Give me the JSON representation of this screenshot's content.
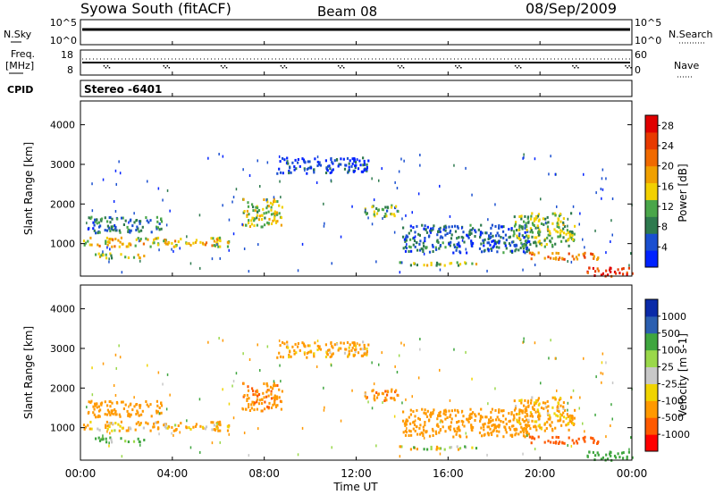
{
  "header": {
    "station": "Syowa South (fitACF)",
    "beam": "Beam 08",
    "date": "08/Sep/2009"
  },
  "noise_panel": {
    "left_label": "N.Sky",
    "right_label": "N.Search",
    "left_ticks": [
      "10^5",
      "10^0"
    ],
    "right_ticks": [
      "10^5",
      "10^0"
    ]
  },
  "freq_panel": {
    "left_label_1": "Freq.",
    "left_label_2": "[MHz]",
    "right_label": "Nave",
    "left_ticks": [
      "18",
      "8"
    ],
    "right_ticks": [
      "60",
      "0"
    ]
  },
  "cpid": {
    "label": "CPID",
    "value": "Stereo -6401"
  },
  "colors": {
    "power": [
      "#0022ff",
      "#1a4fd0",
      "#2e7a4e",
      "#4aa64a",
      "#f2d000",
      "#f0a000",
      "#f06a00",
      "#e83a00",
      "#e00000"
    ],
    "velocity": [
      "#ff0000",
      "#ff5a00",
      "#ff9900",
      "#f0d400",
      "#c8c8c8",
      "#9ad84a",
      "#3fa63f",
      "#2b5fb0",
      "#0a2aa8"
    ]
  },
  "chart_data": [
    {
      "type": "heatmap",
      "name": "power-panel",
      "xlabel": "Time UT",
      "ylabel": "Slant Range [km]",
      "x_ticks": [
        "00:00",
        "04:00",
        "08:00",
        "12:00",
        "16:00",
        "20:00",
        "00:00"
      ],
      "xlim_hours": [
        0,
        24
      ],
      "y_ticks": [
        1000,
        2000,
        3000,
        4000
      ],
      "ylim": [
        180,
        4600
      ],
      "colorbar": {
        "label": "Power [dB]",
        "ticks": [
          "4",
          "8",
          "12",
          "16",
          "20",
          "24",
          "28"
        ],
        "range": [
          0,
          30
        ]
      },
      "regions": [
        {
          "t": [
            0.1,
            6.5
          ],
          "r": [
            950,
            1180
          ],
          "v": 16
        },
        {
          "t": [
            0.6,
            2.8
          ],
          "r": [
            650,
            780
          ],
          "v": 14
        },
        {
          "t": [
            0.3,
            3.5
          ],
          "r": [
            1300,
            1700
          ],
          "v": 8
        },
        {
          "t": [
            7.0,
            8.8
          ],
          "r": [
            1450,
            2150
          ],
          "v": 14
        },
        {
          "t": [
            12.3,
            13.8
          ],
          "r": [
            1700,
            2000
          ],
          "v": 10
        },
        {
          "t": [
            13.2,
            17.5
          ],
          "r": [
            480,
            560
          ],
          "v": 12
        },
        {
          "t": [
            14.0,
            19.5
          ],
          "r": [
            800,
            1500
          ],
          "v": 6
        },
        {
          "t": [
            18.8,
            21.5
          ],
          "r": [
            950,
            1800
          ],
          "v": 12
        },
        {
          "t": [
            19.5,
            22.5
          ],
          "r": [
            620,
            800
          ],
          "v": 22
        },
        {
          "t": [
            22.0,
            24.0
          ],
          "r": [
            200,
            420
          ],
          "v": 26
        },
        {
          "t": [
            8.5,
            12.5
          ],
          "r": [
            2800,
            3200
          ],
          "v": 4
        }
      ]
    },
    {
      "type": "heatmap",
      "name": "velocity-panel",
      "xlabel": "Time UT",
      "ylabel": "Slant Range [km]",
      "x_ticks": [
        "00:00",
        "04:00",
        "08:00",
        "12:00",
        "16:00",
        "20:00",
        "00:00"
      ],
      "xlim_hours": [
        0,
        24
      ],
      "y_ticks": [
        1000,
        2000,
        3000,
        4000
      ],
      "ylim": [
        180,
        4600
      ],
      "colorbar": {
        "label": "Velocity [m s-1]",
        "ticks": [
          "1000",
          "500",
          "100",
          "25",
          "-25",
          "-100",
          "-500",
          "-1000"
        ]
      },
      "regions": [
        {
          "t": [
            0.1,
            6.5
          ],
          "r": [
            950,
            1180
          ],
          "v": -150
        },
        {
          "t": [
            0.6,
            2.8
          ],
          "r": [
            650,
            780
          ],
          "v": 200
        },
        {
          "t": [
            0.3,
            3.5
          ],
          "r": [
            1300,
            1700
          ],
          "v": -300
        },
        {
          "t": [
            7.0,
            8.8
          ],
          "r": [
            1450,
            2150
          ],
          "v": -400
        },
        {
          "t": [
            12.3,
            13.8
          ],
          "r": [
            1700,
            2000
          ],
          "v": -450
        },
        {
          "t": [
            13.2,
            17.5
          ],
          "r": [
            480,
            560
          ],
          "v": -50
        },
        {
          "t": [
            14.0,
            19.5
          ],
          "r": [
            800,
            1500
          ],
          "v": -300
        },
        {
          "t": [
            18.8,
            21.5
          ],
          "r": [
            950,
            1800
          ],
          "v": -200
        },
        {
          "t": [
            19.5,
            22.5
          ],
          "r": [
            620,
            800
          ],
          "v": -700
        },
        {
          "t": [
            22.0,
            24.0
          ],
          "r": [
            200,
            420
          ],
          "v": 300
        },
        {
          "t": [
            8.5,
            12.5
          ],
          "r": [
            2800,
            3200
          ],
          "v": -200
        }
      ]
    }
  ]
}
